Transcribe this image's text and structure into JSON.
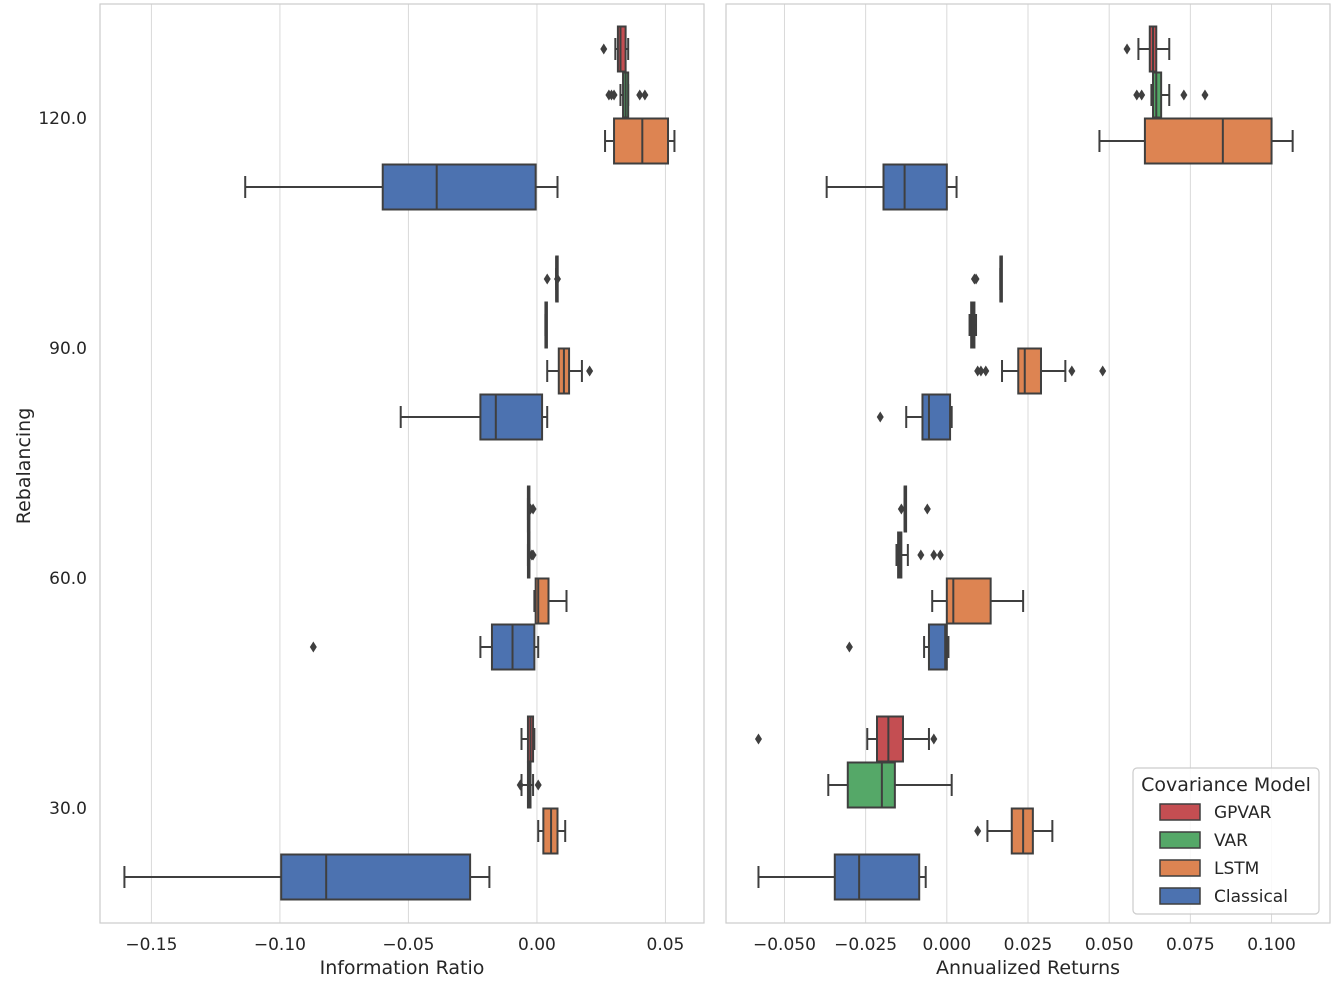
{
  "chart_data": {
    "type": "boxplot",
    "orientation": "horizontal",
    "ylabel": "Rebalancing",
    "categories": [
      "120.0",
      "90.0",
      "60.0",
      "30.0"
    ],
    "hue_order": [
      "GPVAR",
      "VAR",
      "LSTM",
      "Classical"
    ],
    "colors": {
      "GPVAR": "#c44e52",
      "VAR": "#55a868",
      "LSTM": "#dd8452",
      "Classical": "#4c72b0",
      "line": "#3f3f3f",
      "grid": "#d9d9d9",
      "spine": "#cccccc"
    },
    "legend": {
      "title": "Covariance Model",
      "placement": "lower right of right panel",
      "entries": [
        "GPVAR",
        "VAR",
        "LSTM",
        "Classical"
      ]
    },
    "panels": [
      {
        "xlabel": "Information Ratio",
        "xlim": [
          -0.17,
          0.065
        ],
        "xticks": [
          -0.15,
          -0.1,
          -0.05,
          0.0,
          0.05
        ],
        "xtick_labels": [
          "−0.15",
          "−0.10",
          "−0.05",
          "0.00",
          "0.05"
        ],
        "show_ylabels": true,
        "boxes": [
          {
            "category": "120.0",
            "model": "GPVAR",
            "whislo": 0.0305,
            "q1": 0.0315,
            "med": 0.0325,
            "q3": 0.0345,
            "whishi": 0.0355,
            "fliers": [
              0.026
            ]
          },
          {
            "category": "120.0",
            "model": "VAR",
            "whislo": 0.0325,
            "q1": 0.0335,
            "med": 0.0345,
            "q3": 0.0355,
            "whishi": 0.0355,
            "fliers": [
              0.028,
              0.029,
              0.03,
              0.04,
              0.042
            ]
          },
          {
            "category": "120.0",
            "model": "LSTM",
            "whislo": 0.0265,
            "q1": 0.03,
            "med": 0.041,
            "q3": 0.051,
            "whishi": 0.0535,
            "fliers": []
          },
          {
            "category": "120.0",
            "model": "Classical",
            "whislo": -0.1135,
            "q1": -0.06,
            "med": -0.039,
            "q3": -0.0005,
            "whishi": 0.008,
            "fliers": []
          },
          {
            "category": "90.0",
            "model": "GPVAR",
            "whislo": 0.0075,
            "q1": 0.0075,
            "med": 0.0075,
            "q3": 0.0075,
            "whishi": 0.0075,
            "fliers": [
              0.004,
              0.008
            ]
          },
          {
            "category": "90.0",
            "model": "VAR",
            "whislo": 0.0033,
            "q1": 0.0033,
            "med": 0.0035,
            "q3": 0.0037,
            "whishi": 0.0037,
            "fliers": []
          },
          {
            "category": "90.0",
            "model": "LSTM",
            "whislo": 0.004,
            "q1": 0.0085,
            "med": 0.0105,
            "q3": 0.0125,
            "whishi": 0.0175,
            "fliers": [
              0.0205
            ]
          },
          {
            "category": "90.0",
            "model": "Classical",
            "whislo": -0.053,
            "q1": -0.022,
            "med": -0.016,
            "q3": 0.002,
            "whishi": 0.004,
            "fliers": []
          },
          {
            "category": "60.0",
            "model": "GPVAR",
            "whislo": -0.0035,
            "q1": -0.0035,
            "med": -0.0035,
            "q3": -0.003,
            "whishi": -0.003,
            "fliers": [
              -0.0025,
              -0.0015
            ]
          },
          {
            "category": "60.0",
            "model": "VAR",
            "whislo": -0.0035,
            "q1": -0.0035,
            "med": -0.003,
            "q3": -0.003,
            "whishi": -0.003,
            "fliers": [
              -0.002,
              -0.0015
            ]
          },
          {
            "category": "60.0",
            "model": "LSTM",
            "whislo": -0.001,
            "q1": -0.0005,
            "med": 0.0005,
            "q3": 0.0045,
            "whishi": 0.0115,
            "fliers": []
          },
          {
            "category": "60.0",
            "model": "Classical",
            "whislo": -0.022,
            "q1": -0.0175,
            "med": -0.0095,
            "q3": -0.001,
            "whishi": 0.0005,
            "fliers": [
              -0.087
            ]
          },
          {
            "category": "30.0",
            "model": "GPVAR",
            "whislo": -0.006,
            "q1": -0.0035,
            "med": -0.0025,
            "q3": -0.0015,
            "whishi": -0.001,
            "fliers": []
          },
          {
            "category": "30.0",
            "model": "VAR",
            "whislo": -0.006,
            "q1": -0.0035,
            "med": -0.003,
            "q3": -0.0025,
            "whishi": -0.0015,
            "fliers": [
              -0.0065,
              0.0005
            ]
          },
          {
            "category": "30.0",
            "model": "LSTM",
            "whislo": 0.0005,
            "q1": 0.0025,
            "med": 0.0055,
            "q3": 0.008,
            "whishi": 0.011,
            "fliers": []
          },
          {
            "category": "30.0",
            "model": "Classical",
            "whislo": -0.1605,
            "q1": -0.0995,
            "med": -0.082,
            "q3": -0.026,
            "whishi": -0.0185,
            "fliers": []
          }
        ]
      },
      {
        "xlabel": "Annualized Returns",
        "xlim": [
          -0.068,
          0.118
        ],
        "xticks": [
          -0.05,
          -0.025,
          0.0,
          0.025,
          0.05,
          0.075,
          0.1
        ],
        "xtick_labels": [
          "−0.050",
          "−0.025",
          "0.000",
          "0.025",
          "0.050",
          "0.075",
          "0.100"
        ],
        "show_ylabels": false,
        "boxes": [
          {
            "category": "120.0",
            "model": "GPVAR",
            "whislo": 0.059,
            "q1": 0.0625,
            "med": 0.0635,
            "q3": 0.0645,
            "whishi": 0.0685,
            "fliers": [
              0.0555
            ]
          },
          {
            "category": "120.0",
            "model": "VAR",
            "whislo": 0.063,
            "q1": 0.0635,
            "med": 0.0645,
            "q3": 0.066,
            "whishi": 0.0685,
            "fliers": [
              0.0585,
              0.06,
              0.073,
              0.0795
            ]
          },
          {
            "category": "120.0",
            "model": "LSTM",
            "whislo": 0.047,
            "q1": 0.061,
            "med": 0.085,
            "q3": 0.1,
            "whishi": 0.1065,
            "fliers": []
          },
          {
            "category": "120.0",
            "model": "Classical",
            "whislo": -0.037,
            "q1": -0.0195,
            "med": -0.013,
            "q3": 0.0,
            "whishi": 0.003,
            "fliers": []
          },
          {
            "category": "90.0",
            "model": "GPVAR",
            "whislo": 0.0165,
            "q1": 0.0165,
            "med": 0.0165,
            "q3": 0.0165,
            "whishi": 0.0165,
            "fliers": [
              0.0085,
              0.009
            ]
          },
          {
            "category": "90.0",
            "model": "VAR",
            "whislo": 0.007,
            "q1": 0.0075,
            "med": 0.008,
            "q3": 0.0085,
            "whishi": 0.009,
            "fliers": []
          },
          {
            "category": "90.0",
            "model": "LSTM",
            "whislo": 0.017,
            "q1": 0.022,
            "med": 0.024,
            "q3": 0.029,
            "whishi": 0.0365,
            "fliers": [
              0.0095,
              0.0105,
              0.012,
              0.0385,
              0.048
            ]
          },
          {
            "category": "90.0",
            "model": "Classical",
            "whislo": -0.0125,
            "q1": -0.0075,
            "med": -0.0055,
            "q3": 0.001,
            "whishi": 0.0015,
            "fliers": [
              -0.0205
            ]
          },
          {
            "category": "60.0",
            "model": "GPVAR",
            "whislo": -0.013,
            "q1": -0.013,
            "med": -0.013,
            "q3": -0.013,
            "whishi": -0.013,
            "fliers": [
              -0.014,
              -0.006
            ]
          },
          {
            "category": "60.0",
            "model": "VAR",
            "whislo": -0.0155,
            "q1": -0.015,
            "med": -0.0145,
            "q3": -0.014,
            "whishi": -0.012,
            "fliers": [
              -0.008,
              -0.004,
              -0.002
            ]
          },
          {
            "category": "60.0",
            "model": "LSTM",
            "whislo": -0.0045,
            "q1": 0.0,
            "med": 0.002,
            "q3": 0.0135,
            "whishi": 0.0235,
            "fliers": []
          },
          {
            "category": "60.0",
            "model": "Classical",
            "whislo": -0.007,
            "q1": -0.0055,
            "med": -0.0005,
            "q3": 0.0,
            "whishi": 0.0005,
            "fliers": [
              -0.03
            ]
          },
          {
            "category": "30.0",
            "model": "GPVAR",
            "whislo": -0.0245,
            "q1": -0.0215,
            "med": -0.018,
            "q3": -0.0135,
            "whishi": -0.0055,
            "fliers": [
              -0.058,
              -0.004
            ]
          },
          {
            "category": "30.0",
            "model": "VAR",
            "whislo": -0.0365,
            "q1": -0.0305,
            "med": -0.02,
            "q3": -0.016,
            "whishi": 0.0015,
            "fliers": []
          },
          {
            "category": "30.0",
            "model": "LSTM",
            "whislo": 0.0125,
            "q1": 0.02,
            "med": 0.0235,
            "q3": 0.0265,
            "whishi": 0.0325,
            "fliers": [
              0.0095
            ]
          },
          {
            "category": "30.0",
            "model": "Classical",
            "whislo": -0.058,
            "q1": -0.0345,
            "med": -0.027,
            "q3": -0.0085,
            "whishi": -0.0065,
            "fliers": []
          }
        ]
      }
    ]
  }
}
